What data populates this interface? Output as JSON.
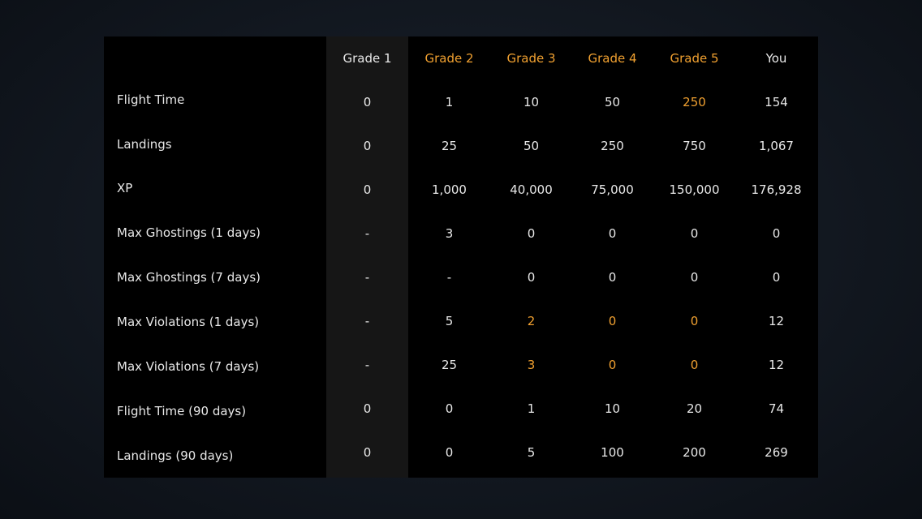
{
  "colors": {
    "accent": "#f0a030",
    "text": "#e8e8e8",
    "panel": "#000000",
    "highlight_column": "#161616"
  },
  "columns": [
    {
      "label": "Grade 1",
      "accent": false
    },
    {
      "label": "Grade 2",
      "accent": true
    },
    {
      "label": "Grade 3",
      "accent": true
    },
    {
      "label": "Grade 4",
      "accent": true
    },
    {
      "label": "Grade 5",
      "accent": true
    },
    {
      "label": "You",
      "accent": false
    }
  ],
  "rows": [
    {
      "label": "Flight Time",
      "values": [
        "0",
        "1",
        "10",
        "50",
        "250",
        "154"
      ],
      "accent": [
        false,
        false,
        false,
        false,
        true,
        false
      ]
    },
    {
      "label": "Landings",
      "values": [
        "0",
        "25",
        "50",
        "250",
        "750",
        "1,067"
      ],
      "accent": [
        false,
        false,
        false,
        false,
        false,
        false
      ]
    },
    {
      "label": "XP",
      "values": [
        "0",
        "1,000",
        "40,000",
        "75,000",
        "150,000",
        "176,928"
      ],
      "accent": [
        false,
        false,
        false,
        false,
        false,
        false
      ]
    },
    {
      "label": "Max Ghostings (1 days)",
      "values": [
        "-",
        "3",
        "0",
        "0",
        "0",
        "0"
      ],
      "accent": [
        false,
        false,
        false,
        false,
        false,
        false
      ]
    },
    {
      "label": "Max Ghostings (7 days)",
      "values": [
        "-",
        "-",
        "0",
        "0",
        "0",
        "0"
      ],
      "accent": [
        false,
        false,
        false,
        false,
        false,
        false
      ]
    },
    {
      "label": "Max Violations (1 days)",
      "values": [
        "-",
        "5",
        "2",
        "0",
        "0",
        "12"
      ],
      "accent": [
        false,
        false,
        true,
        true,
        true,
        false
      ]
    },
    {
      "label": "Max Violations (7 days)",
      "values": [
        "-",
        "25",
        "3",
        "0",
        "0",
        "12"
      ],
      "accent": [
        false,
        false,
        true,
        true,
        true,
        false
      ]
    },
    {
      "label": "Flight Time (90 days)",
      "values": [
        "0",
        "0",
        "1",
        "10",
        "20",
        "74"
      ],
      "accent": [
        false,
        false,
        false,
        false,
        false,
        false
      ]
    },
    {
      "label": "Landings (90 days)",
      "values": [
        "0",
        "0",
        "5",
        "100",
        "200",
        "269"
      ],
      "accent": [
        false,
        false,
        false,
        false,
        false,
        false
      ]
    }
  ]
}
